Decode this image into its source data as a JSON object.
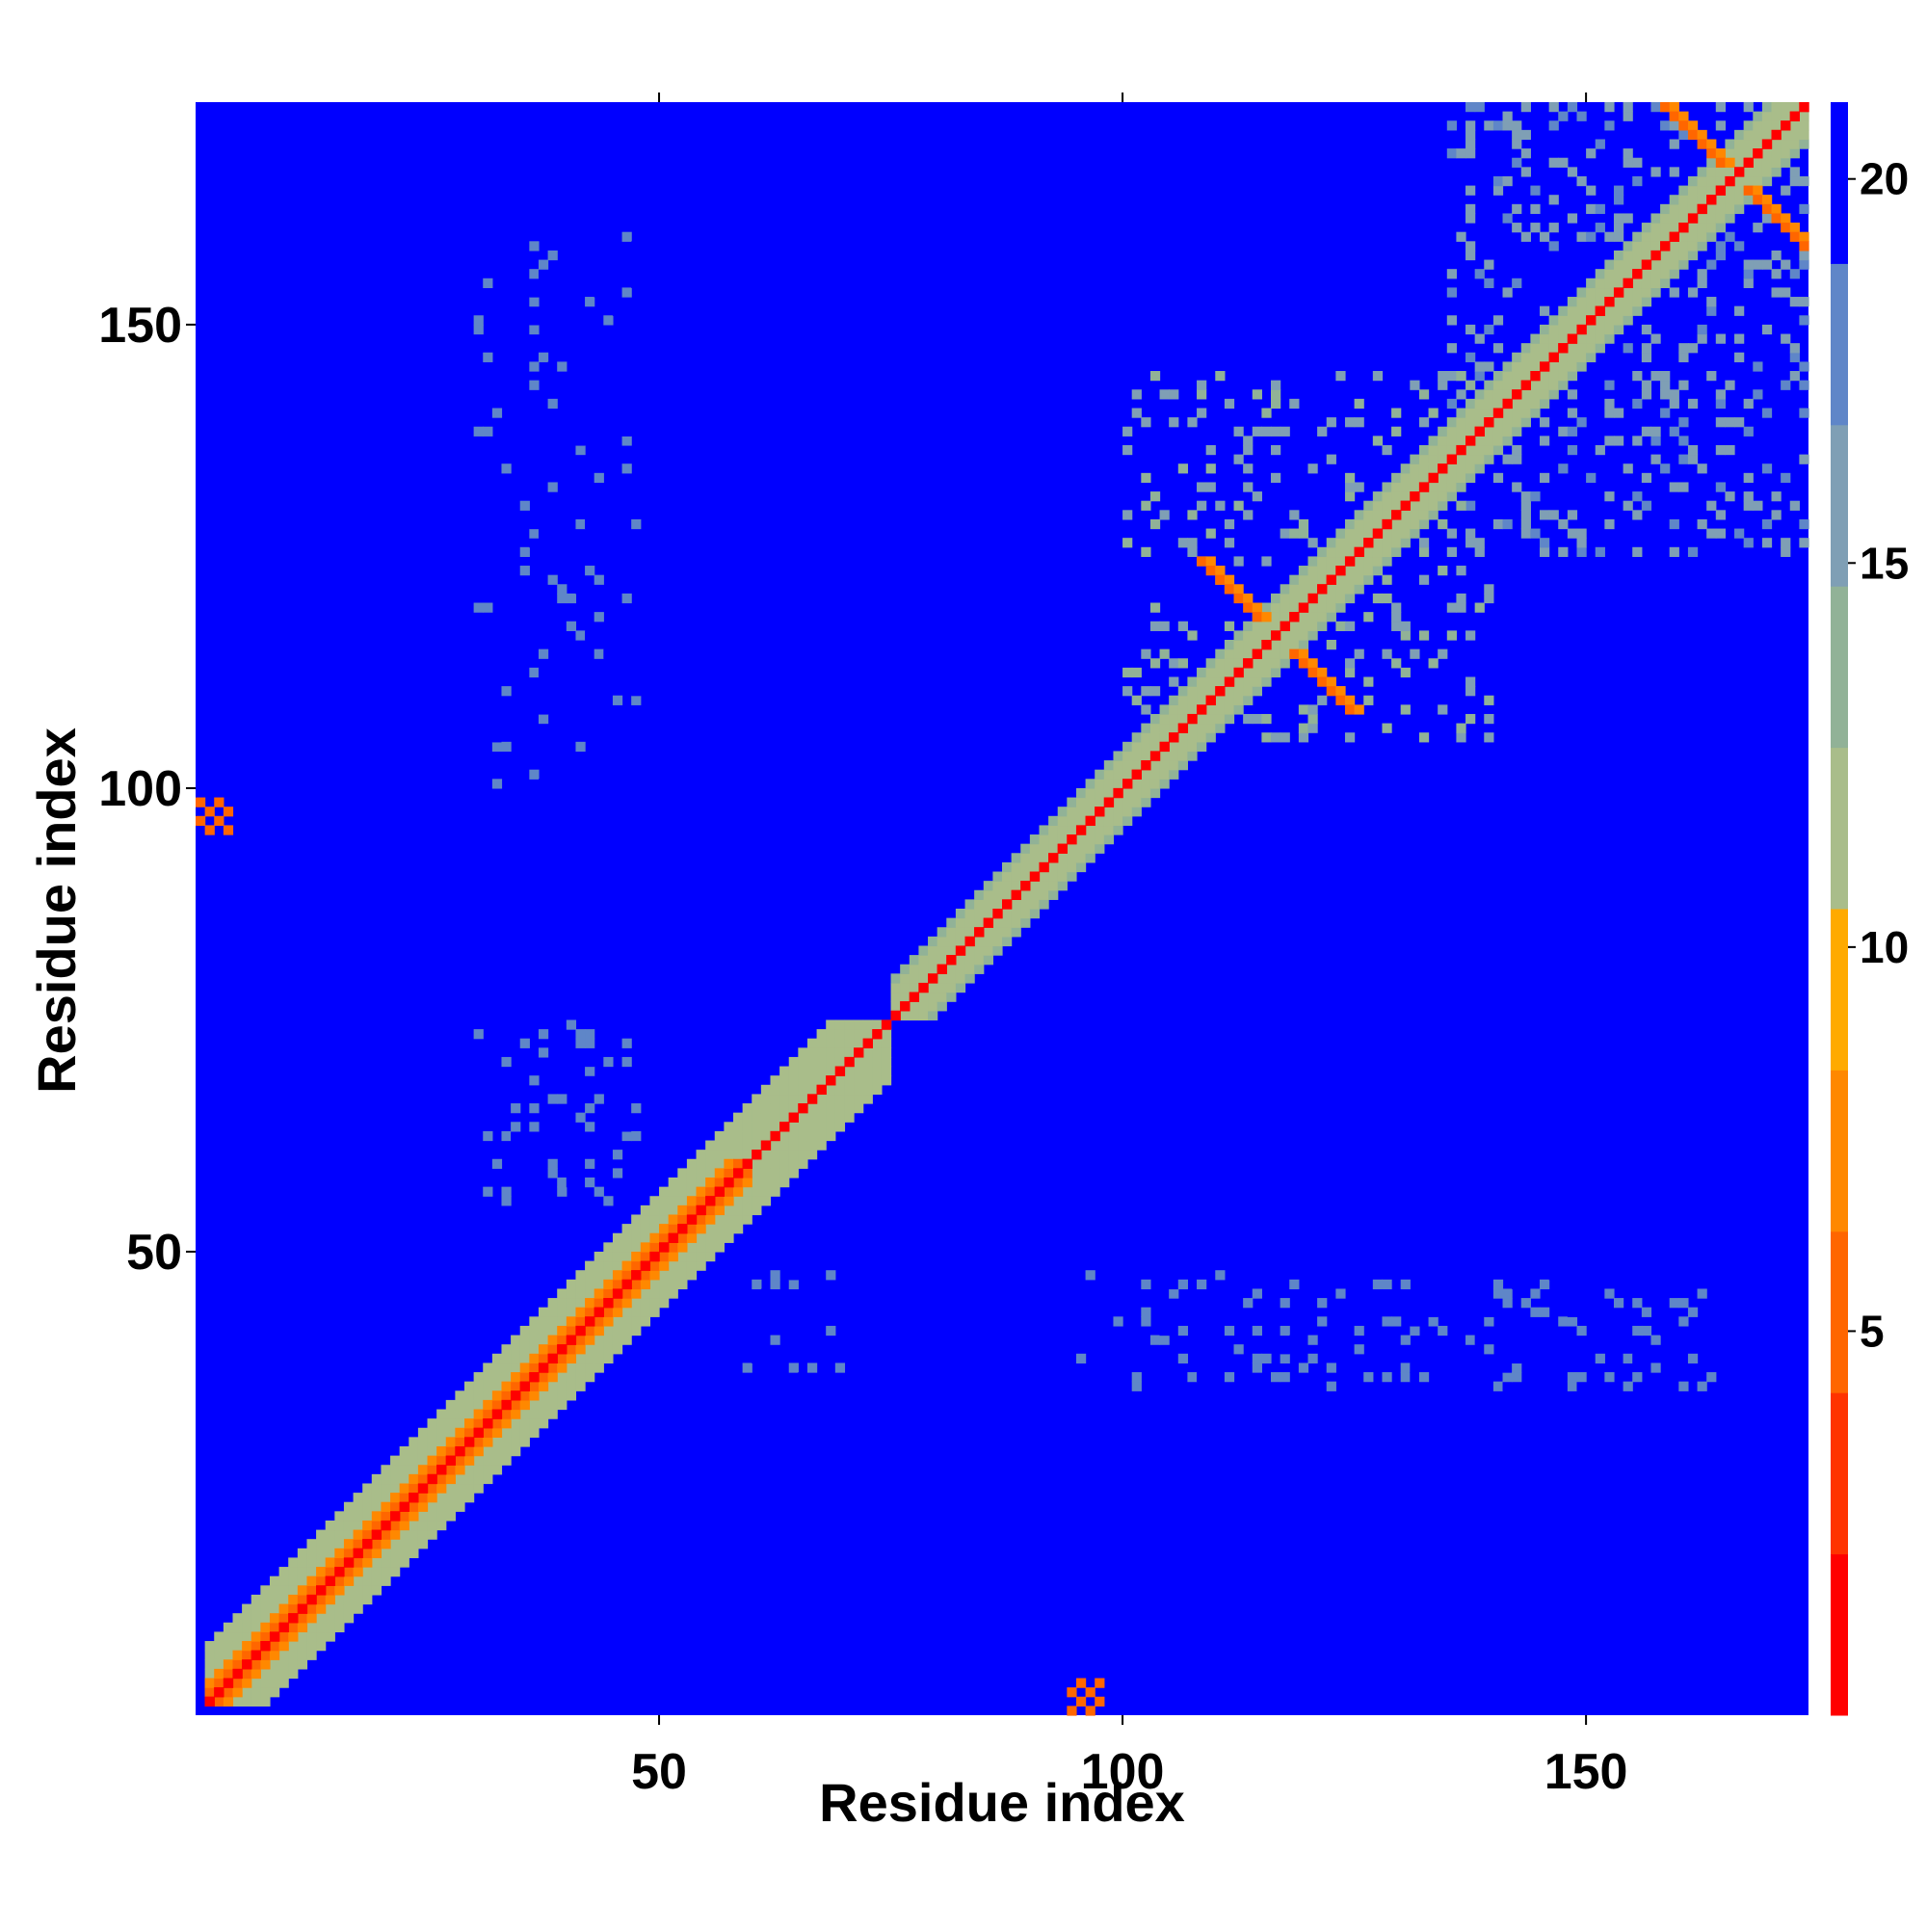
{
  "chart_data": {
    "type": "heatmap",
    "title": "",
    "xlabel": "Residue index",
    "ylabel": "Residue index",
    "xlim": [
      0,
      174
    ],
    "ylim": [
      0,
      174
    ],
    "xticks": [
      {
        "value": 50,
        "label": "50"
      },
      {
        "value": 100,
        "label": "100"
      },
      {
        "value": 150,
        "label": "150"
      }
    ],
    "yticks": [
      {
        "value": 50,
        "label": "50"
      },
      {
        "value": 100,
        "label": "100"
      },
      {
        "value": 150,
        "label": "150"
      }
    ],
    "colorbar": {
      "range": [
        0,
        21
      ],
      "ticks": [
        {
          "value": 5,
          "label": "5"
        },
        {
          "value": 10,
          "label": "10"
        },
        {
          "value": 15,
          "label": "15"
        },
        {
          "value": 20,
          "label": "20"
        }
      ],
      "colors": [
        "#ff0000",
        "#ff3300",
        "#ff6600",
        "#ff8800",
        "#ffaa00",
        "#a9bd8a",
        "#91b297",
        "#7f9fb5",
        "#5f86c8",
        "#0000ff"
      ]
    },
    "background_value": 21,
    "features": [
      {
        "kind": "diagonal_band",
        "x": [
          1,
          174
        ],
        "y": [
          1,
          174
        ],
        "value": 2
      },
      {
        "kind": "diagonal_band",
        "x": [
          1,
          60
        ],
        "y": [
          1,
          60
        ],
        "offset": 2,
        "value": 6
      },
      {
        "kind": "diagonal_band",
        "x": [
          1,
          75
        ],
        "y": [
          1,
          75
        ],
        "offset": 6,
        "value": 11
      },
      {
        "kind": "diagonal_band",
        "x": [
          75,
          174
        ],
        "y": [
          75,
          174
        ],
        "offset": 4,
        "value": 12
      },
      {
        "kind": "antidiagonal",
        "x": [
          108,
          125
        ],
        "y": [
          108,
          125
        ],
        "value": 6
      },
      {
        "kind": "antidiagonal",
        "x": [
          158,
          174
        ],
        "y": [
          158,
          174
        ],
        "value": 6
      },
      {
        "kind": "cluster",
        "x": [
          135,
          174
        ],
        "y": [
          125,
          174
        ],
        "value": 16
      },
      {
        "kind": "cluster",
        "x": [
          100,
          140
        ],
        "y": [
          105,
          145
        ],
        "value": 15
      },
      {
        "kind": "cluster",
        "x": [
          30,
          48
        ],
        "y": [
          100,
          160
        ],
        "value": 19
      },
      {
        "kind": "cluster",
        "x": [
          30,
          48
        ],
        "y": [
          55,
          75
        ],
        "value": 18
      },
      {
        "kind": "cluster",
        "x": [
          55,
          70
        ],
        "y": [
          35,
          48
        ],
        "value": 19
      },
      {
        "kind": "cluster",
        "x": [
          95,
          165
        ],
        "y": [
          35,
          48
        ],
        "value": 18
      },
      {
        "kind": "spot",
        "x": [
          0,
          4
        ],
        "y": [
          95,
          99
        ],
        "value": 6
      },
      {
        "kind": "spot",
        "x": [
          94,
          98
        ],
        "y": [
          0,
          4
        ],
        "value": 6
      }
    ]
  }
}
